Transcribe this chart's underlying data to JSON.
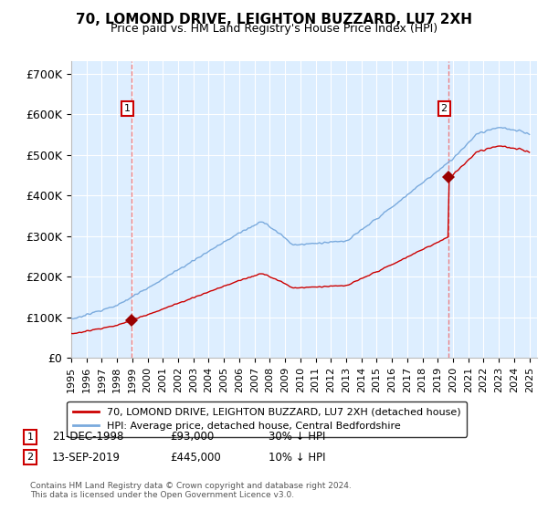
{
  "title": "70, LOMOND DRIVE, LEIGHTON BUZZARD, LU7 2XH",
  "subtitle": "Price paid vs. HM Land Registry's House Price Index (HPI)",
  "title_fontsize": 11,
  "subtitle_fontsize": 9,
  "background_color": "#ffffff",
  "plot_background_color": "#ddeeff",
  "grid_color": "#ffffff",
  "ylabel_ticks": [
    "£0",
    "£100K",
    "£200K",
    "£300K",
    "£400K",
    "£500K",
    "£600K",
    "£700K"
  ],
  "ytick_values": [
    0,
    100000,
    200000,
    300000,
    400000,
    500000,
    600000,
    700000
  ],
  "ylim": [
    0,
    730000
  ],
  "xlim_start": 1995.0,
  "xlim_end": 2025.5,
  "sale1_date": 1998.97,
  "sale1_price": 93000,
  "sale1_label": "1",
  "sale2_date": 2019.71,
  "sale2_price": 445000,
  "sale2_label": "2",
  "hpi_color": "#7aaadd",
  "price_color": "#cc0000",
  "sale_marker_color": "#990000",
  "dashed_line_color": "#ee6666",
  "legend_label_price": "70, LOMOND DRIVE, LEIGHTON BUZZARD, LU7 2XH (detached house)",
  "legend_label_hpi": "HPI: Average price, detached house, Central Bedfordshire",
  "footnote": "Contains HM Land Registry data © Crown copyright and database right 2024.\nThis data is licensed under the Open Government Licence v3.0.",
  "xtick_years": [
    1995,
    1996,
    1997,
    1998,
    1999,
    2000,
    2001,
    2002,
    2003,
    2004,
    2005,
    2006,
    2007,
    2008,
    2009,
    2010,
    2011,
    2012,
    2013,
    2014,
    2015,
    2016,
    2017,
    2018,
    2019,
    2020,
    2021,
    2022,
    2023,
    2024,
    2025
  ]
}
